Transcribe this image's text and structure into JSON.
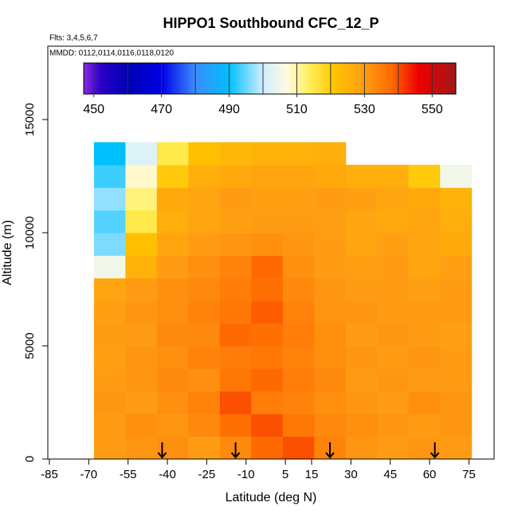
{
  "chart_data": {
    "type": "heatmap",
    "title": "HIPPO1 Southbound CFC_12_P",
    "subtitle": "Flts: 3,4,5,6,7",
    "annotation": "MMDD: 0112,0114,0116,0118,0120",
    "x_label": "Latitude (deg N)",
    "y_label": "Altitude (m)",
    "xlim": [
      -85.6,
      84.6
    ],
    "ylim": [
      0,
      18240
    ],
    "xticks": [
      -85,
      -70,
      -55,
      -40,
      -25,
      -10,
      5,
      15,
      30,
      45,
      60,
      75
    ],
    "yticks": [
      0,
      5000,
      10000,
      15000
    ],
    "x_bins": [
      -68,
      -56,
      -44,
      -32,
      -20,
      -8,
      4,
      16,
      28,
      40,
      52,
      64,
      76
    ],
    "y_bins": [
      0,
      1000,
      2000,
      3000,
      4000,
      5000,
      6000,
      7000,
      8000,
      9000,
      10000,
      11000,
      12000,
      13000,
      14000
    ],
    "values": [
      [
        530,
        531,
        532,
        530,
        533,
        538,
        540,
        534,
        531,
        530,
        531,
        530
      ],
      [
        530,
        532,
        531,
        533,
        537,
        540,
        536,
        533,
        532,
        531,
        530,
        531
      ],
      [
        531,
        530,
        532,
        534,
        540,
        535,
        534,
        532,
        531,
        530,
        532,
        531
      ],
      [
        530,
        531,
        533,
        532,
        536,
        538,
        535,
        533,
        530,
        531,
        530,
        530
      ],
      [
        529,
        531,
        532,
        534,
        535,
        536,
        534,
        532,
        531,
        530,
        531,
        530
      ],
      [
        530,
        530,
        533,
        533,
        538,
        537,
        535,
        532,
        530,
        531,
        530,
        529
      ],
      [
        529,
        531,
        532,
        534,
        536,
        539,
        534,
        531,
        531,
        530,
        530,
        530
      ],
      [
        528,
        530,
        532,
        533,
        535,
        537,
        533,
        531,
        530,
        530,
        529,
        530
      ],
      [
        505,
        525,
        530,
        532,
        534,
        538,
        532,
        530,
        529,
        530,
        528,
        529
      ],
      [
        496,
        522,
        528,
        530,
        531,
        532,
        531,
        530,
        528,
        529,
        528,
        527
      ],
      [
        494,
        515,
        526,
        528,
        529,
        530,
        530,
        529,
        528,
        527,
        528,
        526
      ],
      [
        497,
        512,
        527,
        528,
        530,
        529,
        529,
        530,
        529,
        528,
        527,
        525
      ],
      [
        493,
        508,
        520,
        526,
        527,
        528,
        528,
        527,
        526,
        526,
        520,
        505
      ],
      [
        490,
        502,
        515,
        522,
        524,
        525,
        525,
        526,
        null,
        null,
        null,
        null
      ]
    ],
    "arrow_lats": [
      -42,
      -14,
      22,
      62
    ],
    "colorbar": {
      "lim": [
        447,
        557
      ],
      "ticks": [
        450,
        470,
        490,
        510,
        530,
        550
      ],
      "minor_ticks": [
        460,
        480,
        500,
        520,
        540
      ],
      "stops": [
        [
          447,
          "#8a2be2"
        ],
        [
          452,
          "#2a00c8"
        ],
        [
          460,
          "#0000b4"
        ],
        [
          470,
          "#0000e6"
        ],
        [
          480,
          "#3a8cff"
        ],
        [
          490,
          "#00bfff"
        ],
        [
          500,
          "#cfeeff"
        ],
        [
          507,
          "#fffbe0"
        ],
        [
          514,
          "#ffee55"
        ],
        [
          521,
          "#ffc400"
        ],
        [
          530,
          "#ff9c14"
        ],
        [
          538,
          "#ff6a00"
        ],
        [
          546,
          "#ee0000"
        ],
        [
          557,
          "#a01818"
        ]
      ]
    }
  }
}
